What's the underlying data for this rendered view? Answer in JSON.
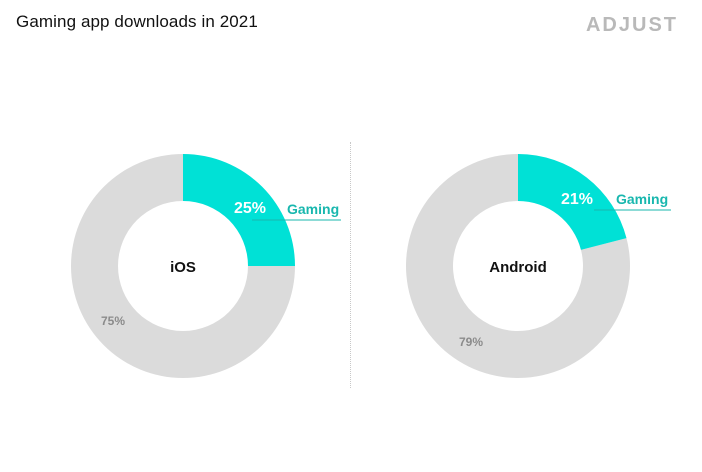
{
  "header": {
    "title": "Gaming app downloads in 2021",
    "logo_text": "ADJUST"
  },
  "colors": {
    "gaming": "#00e1d6",
    "other": "#dbdbdb",
    "label_accent": "#18b7ae",
    "other_label": "#8b8b8b"
  },
  "chart_data": [
    {
      "type": "pie",
      "center_label": "iOS",
      "slices": [
        {
          "label": "Gaming",
          "value": 25,
          "value_label": "25%"
        },
        {
          "label": "",
          "value": 75,
          "value_label": "75%"
        }
      ]
    },
    {
      "type": "pie",
      "center_label": "Android",
      "slices": [
        {
          "label": "Gaming",
          "value": 21,
          "value_label": "21%"
        },
        {
          "label": "",
          "value": 79,
          "value_label": "79%"
        }
      ]
    }
  ]
}
